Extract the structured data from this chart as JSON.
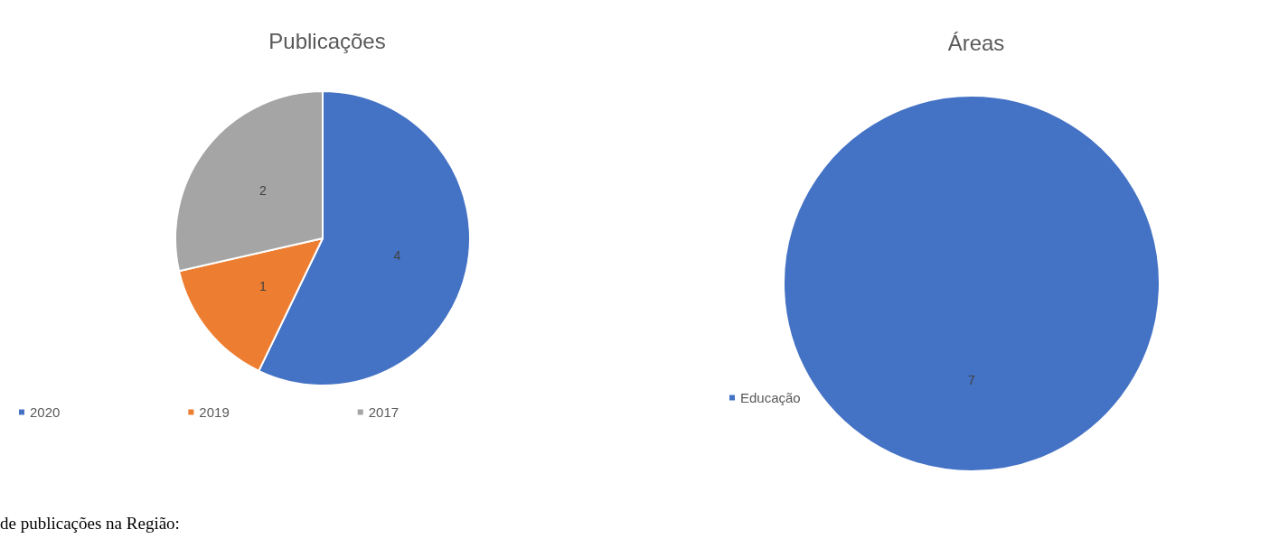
{
  "chart_data": [
    {
      "type": "pie",
      "title": "Publicações",
      "categories": [
        "2020",
        "2019",
        "2017"
      ],
      "values": [
        4,
        1,
        2
      ],
      "colors": [
        "#4472c4",
        "#ed7d31",
        "#a5a5a5"
      ],
      "data_labels": true,
      "legend": "bottom",
      "annotations": [
        "de publicações na Região:"
      ]
    },
    {
      "type": "pie",
      "title": "Áreas",
      "categories": [
        "Educação"
      ],
      "values": [
        7
      ],
      "colors": [
        "#4472c4"
      ],
      "data_labels": true,
      "legend": "left"
    }
  ]
}
